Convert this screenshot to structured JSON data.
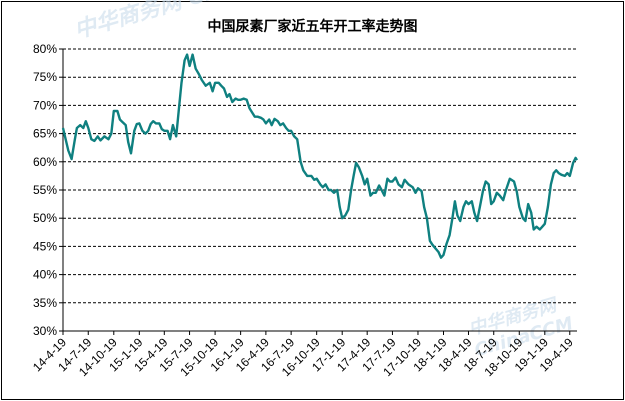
{
  "watermark": "中华商务网 ChinaCCM",
  "colors": {
    "line": "#0f8080",
    "grid": "#000000",
    "background": "#ffffff"
  },
  "chart_data": {
    "type": "line",
    "title": "中国尿素厂家近五年开工率走势图",
    "xlabel": "",
    "ylabel": "",
    "ylim": [
      0.3,
      0.8
    ],
    "y_ticks": [
      {
        "value": 0.3,
        "label": "30%"
      },
      {
        "value": 0.35,
        "label": "35%"
      },
      {
        "value": 0.4,
        "label": "40%"
      },
      {
        "value": 0.45,
        "label": "45%"
      },
      {
        "value": 0.5,
        "label": "50%"
      },
      {
        "value": 0.55,
        "label": "55%"
      },
      {
        "value": 0.6,
        "label": "60%"
      },
      {
        "value": 0.65,
        "label": "65%"
      },
      {
        "value": 0.7,
        "label": "70%"
      },
      {
        "value": 0.75,
        "label": "75%"
      },
      {
        "value": 0.8,
        "label": "80%"
      }
    ],
    "x_start": "14-4-19",
    "x_end": "19-5-15",
    "x_tick_labels": [
      "14-4-19",
      "14-7-19",
      "14-10-19",
      "15-1-19",
      "15-4-19",
      "15-7-19",
      "15-10-19",
      "16-1-19",
      "16-4-19",
      "16-7-19",
      "16-10-19",
      "17-1-19",
      "17-4-19",
      "17-7-19",
      "17-10-19",
      "18-1-19",
      "18-4-19",
      "18-7-19",
      "18-10-19",
      "19-1-19",
      "19-4-19"
    ],
    "grid": true,
    "legend": "none",
    "series": [
      {
        "values": [
          [
            "14-4-19",
            0.66
          ],
          [
            "14-5-8",
            0.62
          ],
          [
            "14-5-20",
            0.605
          ],
          [
            "14-6-1",
            0.64
          ],
          [
            "14-6-8",
            0.66
          ],
          [
            "14-6-20",
            0.665
          ],
          [
            "14-7-1",
            0.66
          ],
          [
            "14-7-10",
            0.672
          ],
          [
            "14-7-19",
            0.66
          ],
          [
            "14-7-30",
            0.64
          ],
          [
            "14-8-10",
            0.637
          ],
          [
            "14-8-22",
            0.645
          ],
          [
            "14-9-1",
            0.638
          ],
          [
            "14-9-15",
            0.645
          ],
          [
            "14-9-30",
            0.64
          ],
          [
            "14-10-10",
            0.65
          ],
          [
            "14-10-19",
            0.69
          ],
          [
            "14-11-1",
            0.69
          ],
          [
            "14-11-10",
            0.675
          ],
          [
            "14-11-20",
            0.67
          ],
          [
            "14-12-1",
            0.665
          ],
          [
            "14-12-10",
            0.635
          ],
          [
            "14-12-20",
            0.615
          ],
          [
            "15-1-1",
            0.655
          ],
          [
            "15-1-10",
            0.667
          ],
          [
            "15-1-19",
            0.668
          ],
          [
            "15-1-30",
            0.655
          ],
          [
            "15-2-10",
            0.65
          ],
          [
            "15-2-20",
            0.655
          ],
          [
            "15-3-1",
            0.667
          ],
          [
            "15-3-10",
            0.672
          ],
          [
            "15-3-20",
            0.668
          ],
          [
            "15-4-1",
            0.668
          ],
          [
            "15-4-10",
            0.658
          ],
          [
            "15-4-19",
            0.655
          ],
          [
            "15-5-1",
            0.655
          ],
          [
            "15-5-10",
            0.64
          ],
          [
            "15-5-20",
            0.665
          ],
          [
            "15-6-1",
            0.645
          ],
          [
            "15-6-10",
            0.69
          ],
          [
            "15-6-20",
            0.74
          ],
          [
            "15-7-1",
            0.78
          ],
          [
            "15-7-10",
            0.79
          ],
          [
            "15-7-19",
            0.77
          ],
          [
            "15-7-30",
            0.79
          ],
          [
            "15-8-10",
            0.765
          ],
          [
            "15-8-22",
            0.755
          ],
          [
            "15-9-1",
            0.745
          ],
          [
            "15-9-15",
            0.735
          ],
          [
            "15-9-30",
            0.74
          ],
          [
            "15-10-10",
            0.725
          ],
          [
            "15-10-19",
            0.74
          ],
          [
            "15-11-1",
            0.74
          ],
          [
            "15-11-10",
            0.735
          ],
          [
            "15-11-20",
            0.73
          ],
          [
            "15-12-1",
            0.715
          ],
          [
            "15-12-10",
            0.72
          ],
          [
            "15-12-20",
            0.706
          ],
          [
            "16-1-1",
            0.712
          ],
          [
            "16-1-10",
            0.71
          ],
          [
            "16-1-19",
            0.71
          ],
          [
            "16-1-30",
            0.712
          ],
          [
            "16-2-10",
            0.71
          ],
          [
            "16-2-20",
            0.695
          ],
          [
            "16-3-1",
            0.687
          ],
          [
            "16-3-10",
            0.68
          ],
          [
            "16-3-20",
            0.68
          ],
          [
            "16-4-1",
            0.678
          ],
          [
            "16-4-10",
            0.675
          ],
          [
            "16-4-19",
            0.668
          ],
          [
            "16-5-1",
            0.675
          ],
          [
            "16-5-10",
            0.665
          ],
          [
            "16-5-20",
            0.676
          ],
          [
            "16-6-1",
            0.672
          ],
          [
            "16-6-10",
            0.665
          ],
          [
            "16-6-20",
            0.668
          ],
          [
            "16-7-1",
            0.66
          ],
          [
            "16-7-10",
            0.655
          ],
          [
            "16-7-19",
            0.655
          ],
          [
            "16-7-30",
            0.645
          ],
          [
            "16-8-10",
            0.64
          ],
          [
            "16-8-22",
            0.6
          ],
          [
            "16-9-1",
            0.585
          ],
          [
            "16-9-15",
            0.575
          ],
          [
            "16-9-30",
            0.575
          ],
          [
            "16-10-10",
            0.568
          ],
          [
            "16-10-19",
            0.57
          ],
          [
            "16-11-1",
            0.56
          ],
          [
            "16-11-10",
            0.555
          ],
          [
            "16-11-20",
            0.56
          ],
          [
            "16-12-1",
            0.55
          ],
          [
            "16-12-10",
            0.55
          ],
          [
            "16-12-20",
            0.545
          ],
          [
            "17-1-1",
            0.55
          ],
          [
            "17-1-10",
            0.52
          ],
          [
            "17-1-19",
            0.5
          ],
          [
            "17-1-30",
            0.505
          ],
          [
            "17-2-10",
            0.515
          ],
          [
            "17-2-20",
            0.55
          ],
          [
            "17-3-1",
            0.575
          ],
          [
            "17-3-10",
            0.598
          ],
          [
            "17-3-20",
            0.59
          ],
          [
            "17-4-1",
            0.575
          ],
          [
            "17-4-10",
            0.56
          ],
          [
            "17-4-19",
            0.57
          ],
          [
            "17-5-1",
            0.54
          ],
          [
            "17-5-10",
            0.545
          ],
          [
            "17-5-20",
            0.545
          ],
          [
            "17-6-1",
            0.558
          ],
          [
            "17-6-10",
            0.55
          ],
          [
            "17-6-20",
            0.54
          ],
          [
            "17-7-1",
            0.57
          ],
          [
            "17-7-10",
            0.565
          ],
          [
            "17-7-19",
            0.565
          ],
          [
            "17-7-30",
            0.572
          ],
          [
            "17-8-10",
            0.56
          ],
          [
            "17-8-22",
            0.555
          ],
          [
            "17-9-1",
            0.568
          ],
          [
            "17-9-15",
            0.56
          ],
          [
            "17-9-30",
            0.555
          ],
          [
            "17-10-10",
            0.545
          ],
          [
            "17-10-19",
            0.553
          ],
          [
            "17-11-1",
            0.548
          ],
          [
            "17-11-10",
            0.52
          ],
          [
            "17-11-20",
            0.5
          ],
          [
            "17-12-1",
            0.46
          ],
          [
            "17-12-10",
            0.453
          ],
          [
            "17-12-20",
            0.447
          ],
          [
            "18-1-1",
            0.44
          ],
          [
            "18-1-10",
            0.43
          ],
          [
            "18-1-19",
            0.435
          ],
          [
            "18-1-30",
            0.455
          ],
          [
            "18-2-10",
            0.47
          ],
          [
            "18-2-20",
            0.5
          ],
          [
            "18-3-1",
            0.53
          ],
          [
            "18-3-10",
            0.505
          ],
          [
            "18-3-20",
            0.495
          ],
          [
            "18-4-1",
            0.52
          ],
          [
            "18-4-10",
            0.53
          ],
          [
            "18-4-19",
            0.525
          ],
          [
            "18-5-1",
            0.53
          ],
          [
            "18-5-10",
            0.51
          ],
          [
            "18-5-20",
            0.495
          ],
          [
            "18-6-1",
            0.525
          ],
          [
            "18-6-10",
            0.548
          ],
          [
            "18-6-20",
            0.565
          ],
          [
            "18-7-1",
            0.56
          ],
          [
            "18-7-10",
            0.525
          ],
          [
            "18-7-19",
            0.53
          ],
          [
            "18-7-30",
            0.545
          ],
          [
            "18-8-10",
            0.54
          ],
          [
            "18-8-22",
            0.532
          ],
          [
            "18-9-1",
            0.55
          ],
          [
            "18-9-15",
            0.57
          ],
          [
            "18-9-30",
            0.565
          ],
          [
            "18-10-10",
            0.547
          ],
          [
            "18-10-19",
            0.52
          ],
          [
            "18-11-1",
            0.5
          ],
          [
            "18-11-10",
            0.495
          ],
          [
            "18-11-20",
            0.525
          ],
          [
            "18-12-1",
            0.51
          ],
          [
            "18-12-10",
            0.48
          ],
          [
            "18-12-20",
            0.485
          ],
          [
            "19-1-1",
            0.48
          ],
          [
            "19-1-10",
            0.485
          ],
          [
            "19-1-19",
            0.49
          ],
          [
            "19-1-30",
            0.52
          ],
          [
            "19-2-10",
            0.56
          ],
          [
            "19-2-20",
            0.58
          ],
          [
            "19-3-1",
            0.585
          ],
          [
            "19-3-10",
            0.58
          ],
          [
            "19-3-20",
            0.577
          ],
          [
            "19-4-1",
            0.575
          ],
          [
            "19-4-10",
            0.58
          ],
          [
            "19-4-19",
            0.575
          ],
          [
            "19-5-1",
            0.598
          ],
          [
            "19-5-10",
            0.607
          ],
          [
            "19-5-15",
            0.603
          ]
        ]
      }
    ]
  }
}
